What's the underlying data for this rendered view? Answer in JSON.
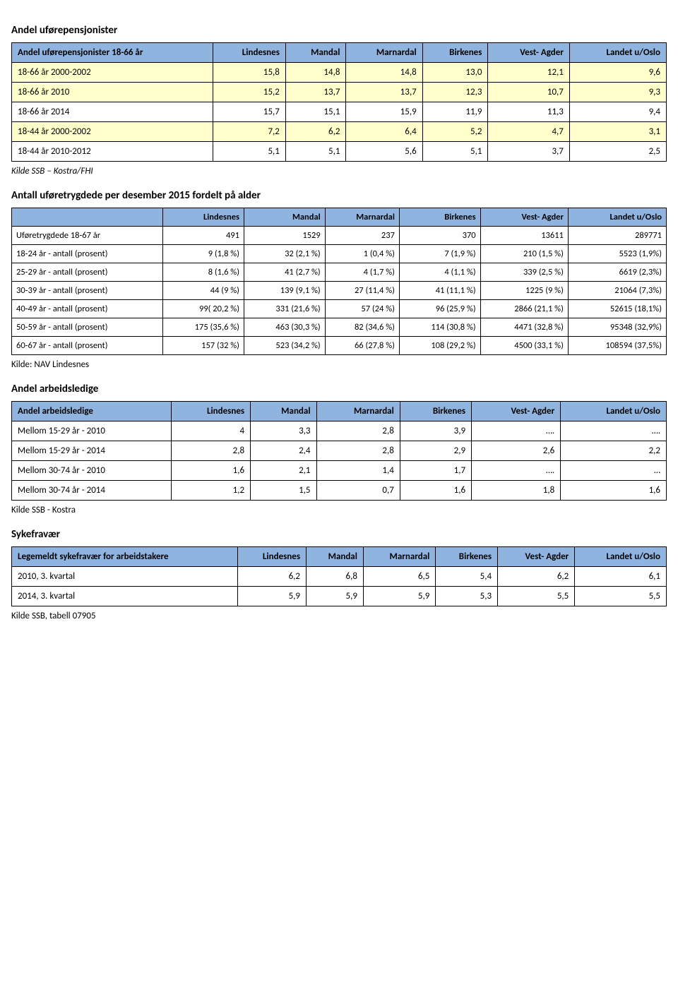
{
  "section1": {
    "title": "Andel uførepensjonister",
    "header": [
      "Andel uførepensjonister 18-66 år",
      "Lindesnes",
      "Mandal",
      "Marnardal",
      "Birkenes",
      "Vest- Agder",
      "Landet u/Oslo"
    ],
    "rows": [
      {
        "label": "18-66 år 2000-2002",
        "vals": [
          "15,8",
          "14,8",
          "14,8",
          "13,0",
          "12,1",
          "9,6"
        ],
        "yellow": true
      },
      {
        "label": "18-66 år 2010",
        "vals": [
          "15,2",
          "13,7",
          "13,7",
          "12,3",
          "10,7",
          "9,3"
        ],
        "yellow": true
      },
      {
        "label": "18-66 år 2014",
        "vals": [
          "15,7",
          "15,1",
          "15,9",
          "11,9",
          "11,3",
          "9,4"
        ],
        "yellow": false
      },
      {
        "label": "18-44 år 2000-2002",
        "vals": [
          "7,2",
          "6,2",
          "6,4",
          "5,2",
          "4,7",
          "3,1"
        ],
        "yellow": true
      },
      {
        "label": "18-44 år 2010-2012",
        "vals": [
          "5,1",
          "5,1",
          "5,6",
          "5,1",
          "3,7",
          "2,5"
        ],
        "yellow": false
      }
    ],
    "source": "Kilde SSB – Kostra/FHI"
  },
  "section2": {
    "title": "Antall uføretrygdede per desember 2015 fordelt på alder",
    "header": [
      "",
      "Lindesnes",
      "Mandal",
      "Marnardal",
      "Birkenes",
      "Vest- Agder",
      "Landet u/Oslo"
    ],
    "rows": [
      {
        "label": "Uføretrygdede 18-67 år",
        "vals": [
          "491",
          "1529",
          "237",
          "370",
          "13611",
          "289771"
        ]
      },
      {
        "label": "18-24 år - antall (prosent)",
        "vals": [
          "9 (1,8 %)",
          "32 (2,1 %)",
          "1 (0,4 %)",
          "7 (1,9 %)",
          "210 (1,5 %)",
          "5523 (1,9%)"
        ]
      },
      {
        "label": "25-29 år - antall (prosent)",
        "vals": [
          "8 (1,6 %)",
          "41 (2,7 %)",
          "4 (1,7 %)",
          "4 (1,1 %)",
          "339 (2,5 %)",
          "6619 (2,3%)"
        ]
      },
      {
        "label": "30-39 år - antall (prosent)",
        "vals": [
          "44 (9 %)",
          "139 (9,1 %)",
          "27 (11,4 %)",
          "41 (11,1 %)",
          "1225 (9 %)",
          "21064 (7,3%)"
        ]
      },
      {
        "label": "40-49 år - antall (prosent)",
        "vals": [
          "99( 20,2 %)",
          "331 (21,6 %)",
          "57 (24 %)",
          "96 (25,9 %)",
          "2866 (21,1 %)",
          "52615 (18,1%)"
        ]
      },
      {
        "label": "50-59 år - antall (prosent)",
        "vals": [
          "175 (35,6 %)",
          "463 (30,3 %)",
          "82 (34,6 %)",
          "114  (30,8 %)",
          "4471 (32,8 %)",
          "95348 (32,9%)"
        ]
      },
      {
        "label": "60-67 år - antall (prosent)",
        "vals": [
          "157 (32 %)",
          "523 (34,2 %)",
          "66 (27,8 %)",
          "108 (29,2 %)",
          "4500 (33,1 %)",
          "108594 (37,5%)"
        ]
      }
    ],
    "source": "Kilde: NAV Lindesnes"
  },
  "section3": {
    "title": "Andel arbeidsledige",
    "header": [
      "Andel arbeidsledige",
      "Lindesnes",
      "Mandal",
      "Marnardal",
      "Birkenes",
      "Vest- Agder",
      "Landet u/Oslo"
    ],
    "rows": [
      {
        "label": "Mellom 15-29 år - 2010",
        "vals": [
          "4",
          "3,3",
          "2,8",
          "3,9",
          "….",
          "…."
        ]
      },
      {
        "label": "Mellom 15-29 år - 2014",
        "vals": [
          "2,8",
          "2,4",
          "2,8",
          "2,9",
          "2,6",
          "2,2"
        ]
      },
      {
        "label": "Mellom 30-74 år - 2010",
        "vals": [
          "1,6",
          "2,1",
          "1,4",
          "1,7",
          "….",
          "…"
        ]
      },
      {
        "label": "Mellom 30-74 år - 2014",
        "vals": [
          "1,2",
          "1,5",
          "0,7",
          "1,6",
          "1,8",
          "1,6"
        ]
      }
    ],
    "source": "Kilde SSB - Kostra"
  },
  "section4": {
    "title": "Sykefravær",
    "header": [
      "Legemeldt sykefravær for arbeidstakere",
      "Lindesnes",
      "Mandal",
      "Marnardal",
      "Birkenes",
      "Vest- Agder",
      "Landet u/Oslo"
    ],
    "rows": [
      {
        "label": "2010, 3. kvartal",
        "vals": [
          "6,2",
          "6,8",
          "6,5",
          "5,4",
          "6,2",
          "6,1"
        ]
      },
      {
        "label": "2014, 3. kvartal",
        "vals": [
          "5,9",
          "5,9",
          "5,9",
          "5,3",
          "5,5",
          "5,5"
        ]
      }
    ],
    "source": "Kilde SSB, tabell 07905"
  }
}
